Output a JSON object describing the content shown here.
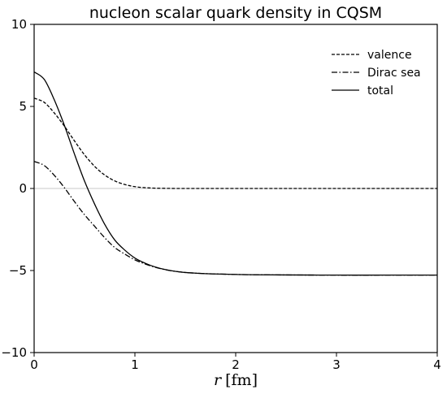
{
  "chart_data": {
    "type": "line",
    "title": "nucleon scalar quark density in CQSM",
    "xlabel": {
      "var": "r",
      "unit": "[fm]"
    },
    "ylabel": "",
    "xlim": [
      0,
      4
    ],
    "ylim": [
      -10,
      10
    ],
    "xticks": [
      0,
      1,
      2,
      3,
      4
    ],
    "yticks": [
      -10,
      -5,
      0,
      5,
      10
    ],
    "ytick_labels": [
      "−10",
      "−5",
      "0",
      "5",
      "10"
    ],
    "zero_line": true,
    "grid": false,
    "legend_position": "top-right",
    "x": [
      0,
      0.1,
      0.2,
      0.3,
      0.4,
      0.5,
      0.6,
      0.7,
      0.8,
      0.9,
      1.0,
      1.1,
      1.2,
      1.3,
      1.4,
      1.5,
      1.6,
      1.7,
      1.8,
      2.0,
      2.2,
      2.5,
      3.0,
      3.5,
      4.0
    ],
    "series": [
      {
        "name": "valence",
        "style": "dashed",
        "values": [
          5.5,
          5.25,
          4.6,
          3.8,
          2.9,
          2.05,
          1.35,
          0.82,
          0.46,
          0.24,
          0.11,
          0.05,
          0.02,
          0.01,
          0.0,
          0.0,
          0.0,
          0.0,
          0.0,
          0.0,
          0.0,
          0.0,
          0.0,
          0.0,
          0.0
        ]
      },
      {
        "name": "Dirac sea",
        "style": "dashdot",
        "values": [
          1.65,
          1.4,
          0.8,
          0.05,
          -0.8,
          -1.6,
          -2.3,
          -3.0,
          -3.6,
          -4.0,
          -4.35,
          -4.6,
          -4.8,
          -4.95,
          -5.05,
          -5.12,
          -5.16,
          -5.19,
          -5.21,
          -5.24,
          -5.26,
          -5.27,
          -5.28,
          -5.28,
          -5.28
        ]
      },
      {
        "name": "total",
        "style": "solid",
        "values": [
          7.1,
          6.65,
          5.4,
          3.85,
          2.1,
          0.45,
          -0.95,
          -2.18,
          -3.14,
          -3.76,
          -4.24,
          -4.55,
          -4.78,
          -4.94,
          -5.05,
          -5.12,
          -5.16,
          -5.19,
          -5.21,
          -5.24,
          -5.26,
          -5.27,
          -5.28,
          -5.28,
          -5.28
        ]
      }
    ]
  }
}
